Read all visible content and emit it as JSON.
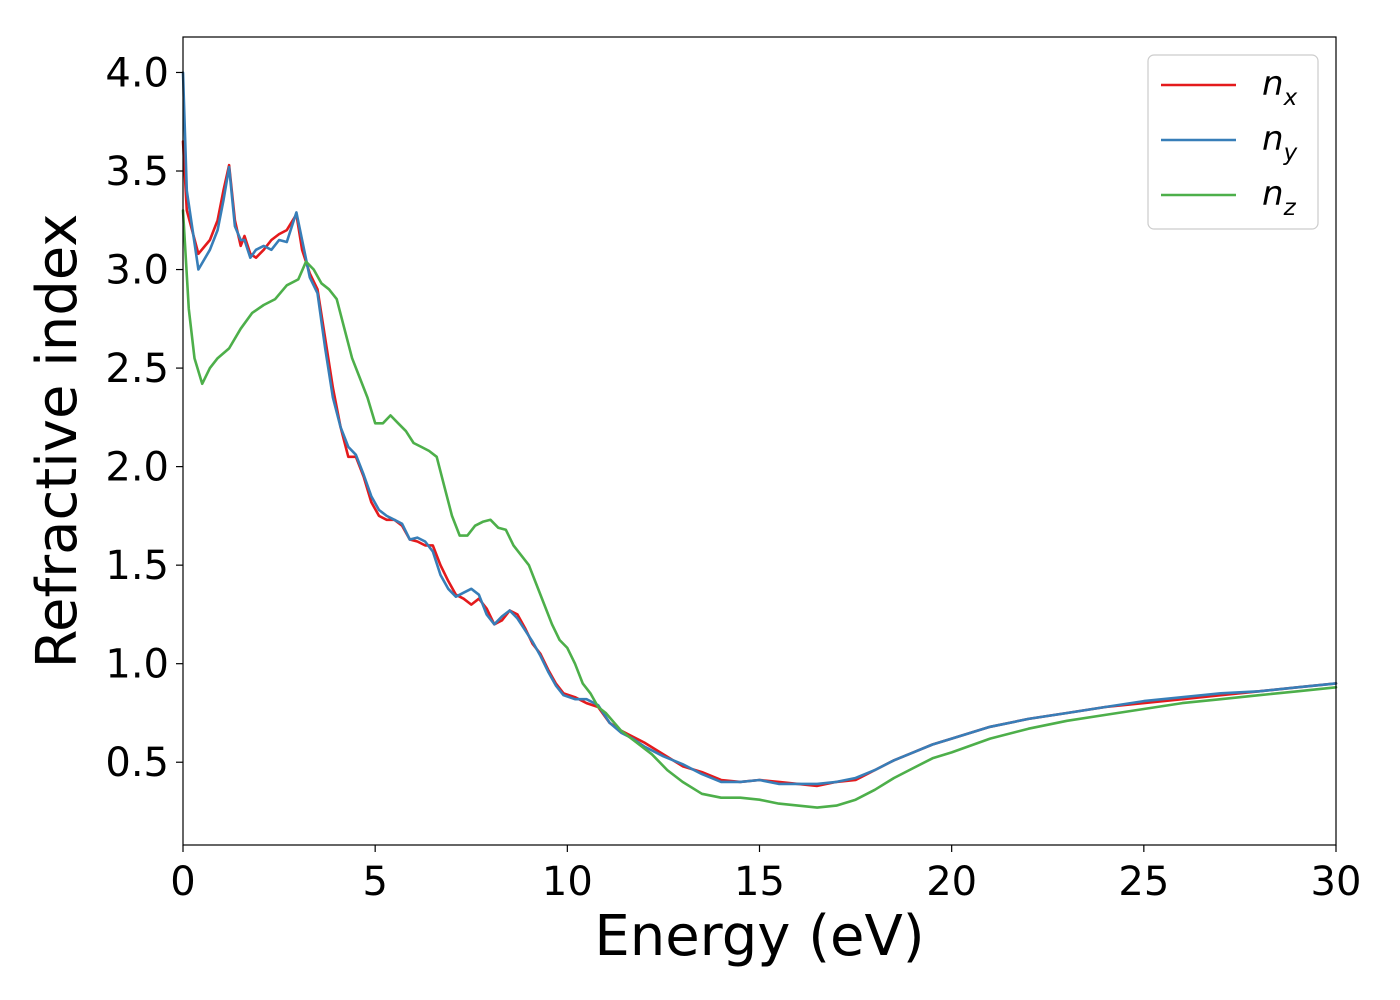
{
  "chart_data": {
    "type": "line",
    "title": "",
    "xlabel": "Energy (eV)",
    "ylabel": "Refractive index",
    "xlim": [
      0,
      30
    ],
    "ylim": [
      0.08,
      4.18
    ],
    "xticks": [
      0,
      5,
      10,
      15,
      20,
      25,
      30
    ],
    "xtick_labels": [
      "0",
      "5",
      "10",
      "15",
      "20",
      "25",
      "30"
    ],
    "yticks": [
      0.5,
      1.0,
      1.5,
      2.0,
      2.5,
      3.0,
      3.5,
      4.0
    ],
    "ytick_labels": [
      "0.5",
      "1.0",
      "1.5",
      "2.0",
      "2.5",
      "3.0",
      "3.5",
      "4.0"
    ],
    "grid": false,
    "legend_position": "top-right",
    "series": [
      {
        "name": "n_x",
        "label_base": "n",
        "label_sub": "x",
        "color": "#e41a1c",
        "x": [
          0,
          0.1,
          0.4,
          0.7,
          0.9,
          1.05,
          1.2,
          1.35,
          1.5,
          1.6,
          1.75,
          1.9,
          2.1,
          2.3,
          2.5,
          2.7,
          2.95,
          3.1,
          3.3,
          3.5,
          3.7,
          3.9,
          4.1,
          4.3,
          4.5,
          4.7,
          4.9,
          5.1,
          5.3,
          5.5,
          5.7,
          5.9,
          6.1,
          6.3,
          6.5,
          6.7,
          6.9,
          7.1,
          7.3,
          7.5,
          7.7,
          7.9,
          8.1,
          8.3,
          8.5,
          8.7,
          8.9,
          9.1,
          9.3,
          9.5,
          9.7,
          9.9,
          10.2,
          10.5,
          10.8,
          11.1,
          11.4,
          11.7,
          12.0,
          12.5,
          13.0,
          13.5,
          14.0,
          14.5,
          15.0,
          15.5,
          16.0,
          16.5,
          17.0,
          17.5,
          18.0,
          18.5,
          19.0,
          19.5,
          20.0,
          21.0,
          22.0,
          23.0,
          24.0,
          25.0,
          26.0,
          27.0,
          28.0,
          29.0,
          30.0
        ],
        "y": [
          3.65,
          3.3,
          3.08,
          3.15,
          3.25,
          3.4,
          3.53,
          3.25,
          3.12,
          3.17,
          3.08,
          3.06,
          3.1,
          3.15,
          3.18,
          3.2,
          3.28,
          3.1,
          2.98,
          2.9,
          2.65,
          2.4,
          2.2,
          2.05,
          2.05,
          1.95,
          1.82,
          1.75,
          1.73,
          1.73,
          1.7,
          1.63,
          1.62,
          1.6,
          1.6,
          1.5,
          1.42,
          1.35,
          1.33,
          1.3,
          1.33,
          1.28,
          1.2,
          1.22,
          1.27,
          1.25,
          1.18,
          1.1,
          1.05,
          0.97,
          0.9,
          0.85,
          0.83,
          0.8,
          0.78,
          0.7,
          0.66,
          0.63,
          0.6,
          0.54,
          0.48,
          0.45,
          0.41,
          0.4,
          0.41,
          0.4,
          0.39,
          0.38,
          0.4,
          0.41,
          0.46,
          0.51,
          0.55,
          0.59,
          0.62,
          0.68,
          0.72,
          0.75,
          0.78,
          0.8,
          0.82,
          0.84,
          0.86,
          0.88,
          0.9
        ]
      },
      {
        "name": "n_y",
        "label_base": "n",
        "label_sub": "y",
        "color": "#377eb8",
        "x": [
          0,
          0.1,
          0.4,
          0.7,
          0.9,
          1.05,
          1.2,
          1.35,
          1.5,
          1.6,
          1.75,
          1.9,
          2.1,
          2.3,
          2.5,
          2.7,
          2.95,
          3.1,
          3.3,
          3.5,
          3.7,
          3.9,
          4.1,
          4.3,
          4.5,
          4.7,
          4.9,
          5.1,
          5.3,
          5.5,
          5.7,
          5.9,
          6.1,
          6.3,
          6.5,
          6.7,
          6.9,
          7.1,
          7.3,
          7.5,
          7.7,
          7.9,
          8.1,
          8.3,
          8.5,
          8.7,
          8.9,
          9.1,
          9.3,
          9.5,
          9.7,
          9.9,
          10.2,
          10.5,
          10.8,
          11.1,
          11.4,
          11.7,
          12.0,
          12.5,
          13.0,
          13.5,
          14.0,
          14.5,
          15.0,
          15.5,
          16.0,
          16.5,
          17.0,
          17.5,
          18.0,
          18.5,
          19.0,
          19.5,
          20.0,
          21.0,
          22.0,
          23.0,
          24.0,
          25.0,
          26.0,
          27.0,
          28.0,
          29.0,
          30.0
        ],
        "y": [
          4.0,
          3.4,
          3.0,
          3.1,
          3.2,
          3.35,
          3.52,
          3.22,
          3.15,
          3.15,
          3.06,
          3.1,
          3.12,
          3.1,
          3.15,
          3.14,
          3.29,
          3.15,
          2.96,
          2.88,
          2.6,
          2.35,
          2.2,
          2.1,
          2.06,
          1.96,
          1.85,
          1.78,
          1.75,
          1.73,
          1.71,
          1.63,
          1.64,
          1.62,
          1.57,
          1.45,
          1.38,
          1.34,
          1.36,
          1.38,
          1.35,
          1.25,
          1.2,
          1.24,
          1.27,
          1.23,
          1.17,
          1.11,
          1.04,
          0.96,
          0.89,
          0.84,
          0.82,
          0.82,
          0.79,
          0.7,
          0.65,
          0.62,
          0.58,
          0.53,
          0.49,
          0.44,
          0.4,
          0.4,
          0.41,
          0.39,
          0.39,
          0.39,
          0.4,
          0.42,
          0.46,
          0.51,
          0.55,
          0.59,
          0.62,
          0.68,
          0.72,
          0.75,
          0.78,
          0.81,
          0.83,
          0.85,
          0.86,
          0.88,
          0.9
        ]
      },
      {
        "name": "n_z",
        "label_base": "n",
        "label_sub": "z",
        "color": "#4daf4a",
        "x": [
          0,
          0.15,
          0.3,
          0.5,
          0.7,
          0.9,
          1.2,
          1.5,
          1.8,
          2.1,
          2.4,
          2.7,
          3.0,
          3.2,
          3.4,
          3.6,
          3.8,
          4.0,
          4.2,
          4.4,
          4.6,
          4.8,
          5.0,
          5.2,
          5.4,
          5.6,
          5.8,
          6.0,
          6.2,
          6.4,
          6.6,
          6.8,
          7.0,
          7.2,
          7.4,
          7.6,
          7.8,
          8.0,
          8.2,
          8.4,
          8.6,
          8.8,
          9.0,
          9.2,
          9.4,
          9.6,
          9.8,
          10.0,
          10.2,
          10.4,
          10.6,
          10.8,
          11.0,
          11.4,
          11.8,
          12.2,
          12.6,
          13.0,
          13.5,
          14.0,
          14.5,
          15.0,
          15.5,
          16.0,
          16.5,
          17.0,
          17.5,
          18.0,
          18.5,
          19.0,
          19.5,
          20.0,
          21.0,
          22.0,
          23.0,
          24.0,
          25.0,
          26.0,
          27.0,
          28.0,
          29.0,
          30.0
        ],
        "y": [
          3.3,
          2.8,
          2.55,
          2.42,
          2.5,
          2.55,
          2.6,
          2.7,
          2.78,
          2.82,
          2.85,
          2.92,
          2.95,
          3.04,
          3.0,
          2.93,
          2.9,
          2.85,
          2.7,
          2.55,
          2.45,
          2.35,
          2.22,
          2.22,
          2.26,
          2.22,
          2.18,
          2.12,
          2.1,
          2.08,
          2.05,
          1.9,
          1.75,
          1.65,
          1.65,
          1.7,
          1.72,
          1.73,
          1.69,
          1.68,
          1.6,
          1.55,
          1.5,
          1.4,
          1.3,
          1.2,
          1.12,
          1.08,
          1.0,
          0.9,
          0.85,
          0.78,
          0.75,
          0.66,
          0.6,
          0.54,
          0.46,
          0.4,
          0.34,
          0.32,
          0.32,
          0.31,
          0.29,
          0.28,
          0.27,
          0.28,
          0.31,
          0.36,
          0.42,
          0.47,
          0.52,
          0.55,
          0.62,
          0.67,
          0.71,
          0.74,
          0.77,
          0.8,
          0.82,
          0.84,
          0.86,
          0.88
        ]
      }
    ]
  }
}
